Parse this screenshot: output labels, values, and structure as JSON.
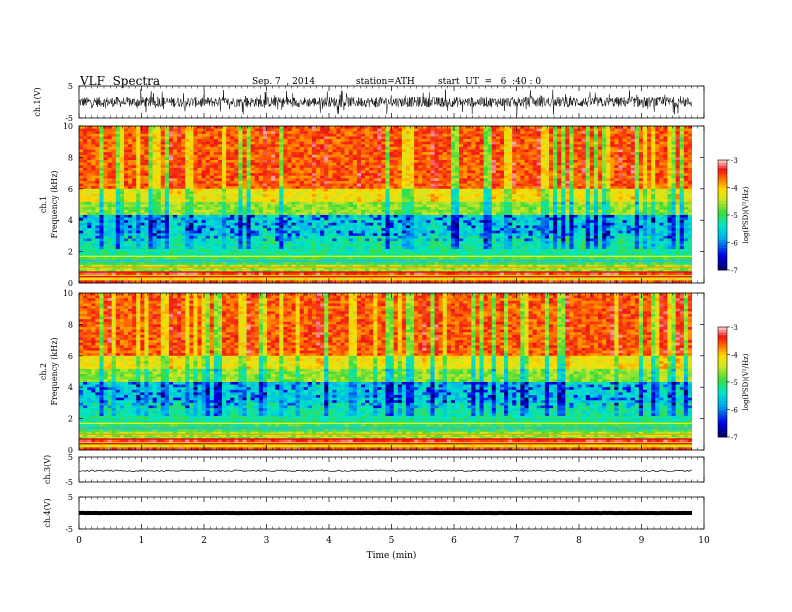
{
  "header": {
    "title": "VLF  Spectra",
    "date": "Sep. 7  , 2014",
    "station": "station=ATH",
    "start": "start  UT  =   6  :40 : 0"
  },
  "chart_data": [
    {
      "type": "line",
      "panel": "ch1-waveform",
      "ylabel": "ch.1(V)",
      "ylim": [
        -5,
        5
      ],
      "yticks": [
        "5",
        "-5"
      ],
      "x_extent_min": [
        0,
        9.8
      ],
      "description_level": "noisy broadband waveform, amplitude about ±2 V with spikes to about ±4 V"
    },
    {
      "type": "heatmap",
      "panel": "ch1-spectrogram",
      "ylabel": "ch.1\nFrequency  (kHz)",
      "ylabel_lines": [
        "ch.1",
        "Frequency  (kHz)"
      ],
      "ylim": [
        0,
        10
      ],
      "yticks": [
        "0",
        "2",
        "4",
        "6",
        "8",
        "10"
      ],
      "x_extent_min": [
        0,
        9.8
      ],
      "colorbar": {
        "label": "log(PSD)(V²/Hz)",
        "range": [
          -7,
          -3
        ],
        "ticks": [
          "-3",
          "-4",
          "-5",
          "-6",
          "-7"
        ]
      },
      "bands_khz": [
        {
          "from": 0,
          "to": 1.5,
          "level": "striped mixed, red lines at ~0.4 and ~1.0 kHz"
        },
        {
          "from": 1.5,
          "to": 4.5,
          "level": "cyan/green with dark blue regions near 3-4 kHz"
        },
        {
          "from": 4.5,
          "to": 6,
          "level": "yellow/green"
        },
        {
          "from": 6,
          "to": 10,
          "level": "red/orange with vertical yellow streaks"
        }
      ]
    },
    {
      "type": "heatmap",
      "panel": "ch2-spectrogram",
      "ylabel_lines": [
        "ch.2",
        "Frequency  (kHz)"
      ],
      "ylim": [
        0,
        10
      ],
      "yticks": [
        "0",
        "2",
        "4",
        "6",
        "8",
        "10"
      ],
      "x_extent_min": [
        0,
        9.8
      ],
      "colorbar": {
        "label": "log(PSD)(V²/Hz)",
        "range": [
          -7,
          -3
        ],
        "ticks": [
          "-3",
          "-4",
          "-5",
          "-6",
          "-7"
        ]
      }
    },
    {
      "type": "line",
      "panel": "ch3-waveform",
      "ylabel": "ch.3(V)",
      "ylim": [
        -5,
        5
      ],
      "yticks": [
        "5",
        "-5"
      ],
      "level_v": -0.5
    },
    {
      "type": "line",
      "panel": "ch4-waveform",
      "ylabel": "ch.4(V)",
      "ylim": [
        -5,
        5
      ],
      "yticks": [
        "5",
        "-5"
      ],
      "level_v": 0
    }
  ],
  "xaxis": {
    "label": "Time  (min)",
    "range": [
      0,
      10
    ],
    "ticks": [
      "0",
      "1",
      "2",
      "3",
      "4",
      "5",
      "6",
      "7",
      "8",
      "9",
      "10"
    ]
  },
  "colors": {
    "waveform": "#000000",
    "background": "#ffffff"
  }
}
